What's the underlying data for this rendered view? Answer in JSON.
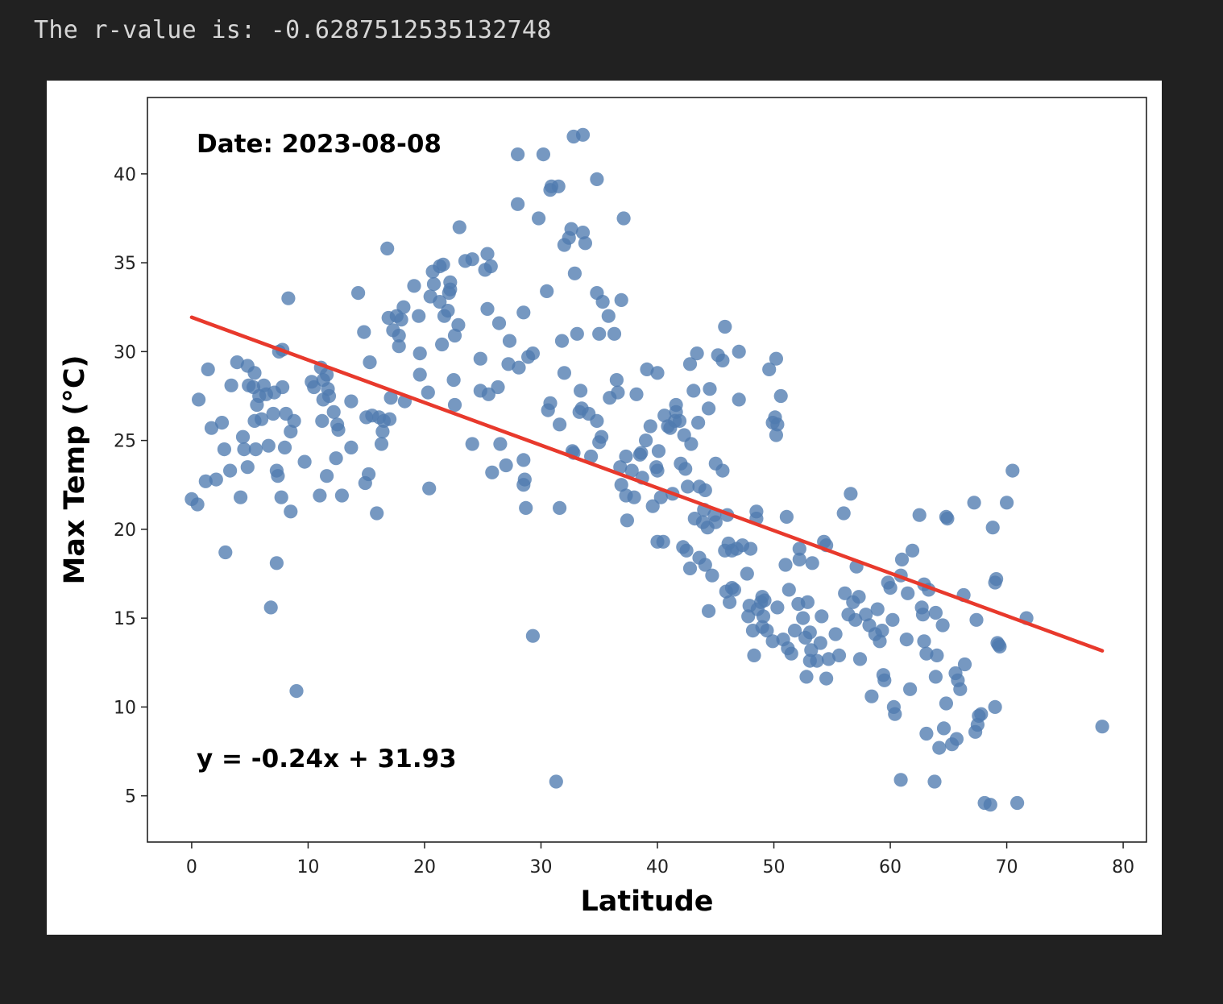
{
  "output": {
    "r_value_text": "The r-value is: -0.6287512535132748"
  },
  "chart_data": {
    "type": "scatter",
    "title": "",
    "xlabel": "Latitude",
    "ylabel": "Max Temp (°C)",
    "xlim": [
      -3.8,
      82.0
    ],
    "ylim": [
      2.4,
      44.3
    ],
    "xticks": [
      0,
      10,
      20,
      30,
      40,
      50,
      60,
      70,
      80
    ],
    "yticks": [
      5,
      10,
      15,
      20,
      25,
      30,
      35,
      40
    ],
    "grid": false,
    "annotations": {
      "date": "Date: 2023-08-08",
      "equation": "y = -0.24x + 31.93"
    },
    "regression": {
      "slope": -0.24,
      "intercept": 31.93,
      "x_range": [
        0,
        78.2
      ],
      "color": "#e8392c"
    },
    "point_color": "#4f7bb0",
    "points": [
      [
        0.0,
        21.7
      ],
      [
        0.5,
        21.4
      ],
      [
        0.6,
        27.3
      ],
      [
        1.4,
        29.0
      ],
      [
        1.2,
        22.7
      ],
      [
        1.7,
        25.7
      ],
      [
        2.1,
        22.8
      ],
      [
        2.6,
        26.0
      ],
      [
        2.9,
        18.7
      ],
      [
        2.8,
        24.5
      ],
      [
        3.4,
        28.1
      ],
      [
        3.3,
        23.3
      ],
      [
        3.9,
        29.4
      ],
      [
        4.2,
        21.8
      ],
      [
        4.4,
        25.2
      ],
      [
        4.5,
        24.5
      ],
      [
        4.8,
        29.2
      ],
      [
        4.9,
        28.1
      ],
      [
        4.8,
        23.5
      ],
      [
        5.3,
        28.0
      ],
      [
        5.4,
        28.8
      ],
      [
        5.4,
        26.1
      ],
      [
        5.6,
        27.0
      ],
      [
        5.8,
        27.5
      ],
      [
        5.5,
        24.5
      ],
      [
        6.0,
        26.2
      ],
      [
        6.2,
        28.1
      ],
      [
        6.4,
        27.6
      ],
      [
        6.6,
        24.7
      ],
      [
        6.8,
        15.6
      ],
      [
        7.0,
        26.5
      ],
      [
        7.1,
        27.7
      ],
      [
        7.3,
        23.3
      ],
      [
        7.4,
        23.0
      ],
      [
        7.3,
        18.1
      ],
      [
        7.5,
        30.0
      ],
      [
        7.7,
        21.8
      ],
      [
        7.8,
        30.1
      ],
      [
        7.8,
        28.0
      ],
      [
        8.0,
        24.6
      ],
      [
        8.1,
        26.5
      ],
      [
        8.3,
        33.0
      ],
      [
        8.5,
        25.5
      ],
      [
        8.5,
        21.0
      ],
      [
        8.8,
        26.1
      ],
      [
        9.0,
        10.9
      ],
      [
        9.7,
        23.8
      ],
      [
        10.3,
        28.3
      ],
      [
        10.5,
        28.0
      ],
      [
        11.0,
        21.9
      ],
      [
        11.1,
        29.1
      ],
      [
        11.2,
        26.1
      ],
      [
        11.3,
        27.3
      ],
      [
        11.3,
        28.4
      ],
      [
        11.6,
        23.0
      ],
      [
        11.6,
        28.7
      ],
      [
        11.7,
        27.9
      ],
      [
        11.8,
        27.5
      ],
      [
        12.2,
        26.6
      ],
      [
        12.4,
        24.0
      ],
      [
        12.5,
        25.9
      ],
      [
        12.6,
        25.6
      ],
      [
        12.9,
        21.9
      ],
      [
        13.7,
        27.2
      ],
      [
        13.7,
        24.6
      ],
      [
        14.3,
        33.3
      ],
      [
        14.8,
        31.1
      ],
      [
        14.9,
        22.6
      ],
      [
        15.0,
        26.3
      ],
      [
        15.2,
        23.1
      ],
      [
        15.3,
        29.4
      ],
      [
        15.5,
        26.4
      ],
      [
        15.9,
        20.9
      ],
      [
        16.1,
        26.3
      ],
      [
        16.3,
        24.8
      ],
      [
        16.4,
        25.5
      ],
      [
        16.5,
        26.1
      ],
      [
        16.8,
        35.8
      ],
      [
        16.9,
        31.9
      ],
      [
        17.0,
        26.2
      ],
      [
        17.1,
        27.4
      ],
      [
        17.3,
        31.2
      ],
      [
        17.6,
        32.0
      ],
      [
        17.8,
        30.9
      ],
      [
        17.8,
        30.3
      ],
      [
        18.0,
        31.8
      ],
      [
        18.2,
        32.5
      ],
      [
        18.3,
        27.2
      ],
      [
        19.1,
        33.7
      ],
      [
        19.5,
        32.0
      ],
      [
        19.6,
        29.9
      ],
      [
        19.6,
        28.7
      ],
      [
        20.3,
        27.7
      ],
      [
        20.4,
        22.3
      ],
      [
        20.5,
        33.1
      ],
      [
        20.7,
        34.5
      ],
      [
        20.8,
        33.8
      ],
      [
        21.3,
        32.8
      ],
      [
        21.3,
        34.8
      ],
      [
        21.6,
        34.9
      ],
      [
        21.5,
        30.4
      ],
      [
        21.7,
        32.0
      ],
      [
        22.0,
        32.3
      ],
      [
        22.1,
        33.3
      ],
      [
        22.2,
        33.9
      ],
      [
        22.2,
        33.5
      ],
      [
        22.5,
        28.4
      ],
      [
        22.6,
        30.9
      ],
      [
        22.6,
        27.0
      ],
      [
        22.9,
        31.5
      ],
      [
        23.0,
        37.0
      ],
      [
        23.5,
        35.1
      ],
      [
        24.1,
        35.2
      ],
      [
        24.1,
        24.8
      ],
      [
        24.8,
        29.6
      ],
      [
        24.8,
        27.8
      ],
      [
        25.2,
        34.6
      ],
      [
        25.4,
        35.5
      ],
      [
        25.4,
        32.4
      ],
      [
        25.5,
        27.6
      ],
      [
        25.7,
        34.8
      ],
      [
        25.8,
        23.2
      ],
      [
        26.4,
        31.6
      ],
      [
        26.3,
        28.0
      ],
      [
        26.5,
        24.8
      ],
      [
        27.0,
        23.6
      ],
      [
        27.2,
        29.3
      ],
      [
        27.3,
        30.6
      ],
      [
        28.0,
        41.1
      ],
      [
        28.0,
        38.3
      ],
      [
        28.1,
        29.1
      ],
      [
        28.5,
        32.2
      ],
      [
        28.5,
        23.9
      ],
      [
        28.6,
        22.8
      ],
      [
        28.5,
        22.5
      ],
      [
        28.7,
        21.2
      ],
      [
        28.9,
        29.7
      ],
      [
        29.3,
        29.9
      ],
      [
        29.3,
        14.0
      ],
      [
        29.8,
        37.5
      ],
      [
        30.2,
        41.1
      ],
      [
        30.5,
        33.4
      ],
      [
        30.6,
        26.7
      ],
      [
        30.8,
        27.1
      ],
      [
        30.8,
        39.1
      ],
      [
        30.9,
        39.3
      ],
      [
        31.3,
        5.8
      ],
      [
        31.5,
        39.3
      ],
      [
        31.6,
        25.9
      ],
      [
        31.6,
        21.2
      ],
      [
        31.8,
        30.6
      ],
      [
        32.0,
        28.8
      ],
      [
        32.0,
        36.0
      ],
      [
        32.4,
        36.4
      ],
      [
        32.6,
        36.9
      ],
      [
        32.7,
        24.4
      ],
      [
        32.8,
        24.3
      ],
      [
        32.8,
        42.1
      ],
      [
        32.9,
        34.4
      ],
      [
        33.1,
        31.0
      ],
      [
        33.3,
        26.6
      ],
      [
        33.4,
        27.8
      ],
      [
        33.5,
        26.8
      ],
      [
        33.6,
        36.7
      ],
      [
        33.6,
        42.2
      ],
      [
        33.8,
        36.1
      ],
      [
        34.1,
        26.5
      ],
      [
        34.3,
        24.1
      ],
      [
        34.8,
        26.1
      ],
      [
        34.8,
        33.3
      ],
      [
        34.8,
        39.7
      ],
      [
        35.0,
        31.0
      ],
      [
        35.0,
        24.9
      ],
      [
        35.2,
        25.2
      ],
      [
        35.3,
        32.8
      ],
      [
        35.8,
        32.0
      ],
      [
        35.9,
        27.4
      ],
      [
        36.3,
        31.0
      ],
      [
        36.5,
        28.4
      ],
      [
        36.6,
        27.7
      ],
      [
        36.8,
        23.5
      ],
      [
        36.9,
        32.9
      ],
      [
        36.9,
        22.5
      ],
      [
        37.1,
        37.5
      ],
      [
        37.3,
        24.1
      ],
      [
        37.3,
        21.9
      ],
      [
        37.4,
        20.5
      ],
      [
        37.8,
        23.3
      ],
      [
        38.0,
        21.8
      ],
      [
        38.2,
        27.6
      ],
      [
        38.5,
        24.2
      ],
      [
        38.6,
        24.3
      ],
      [
        38.7,
        22.9
      ],
      [
        39.0,
        25.0
      ],
      [
        39.1,
        29.0
      ],
      [
        39.4,
        25.8
      ],
      [
        39.6,
        21.3
      ],
      [
        39.9,
        23.5
      ],
      [
        40.0,
        28.8
      ],
      [
        40.0,
        23.3
      ],
      [
        40.0,
        19.3
      ],
      [
        40.1,
        24.4
      ],
      [
        40.3,
        21.8
      ],
      [
        40.5,
        19.3
      ],
      [
        40.6,
        26.4
      ],
      [
        40.9,
        25.8
      ],
      [
        41.1,
        25.7
      ],
      [
        41.3,
        22.0
      ],
      [
        41.5,
        26.1
      ],
      [
        41.6,
        27.0
      ],
      [
        41.6,
        26.6
      ],
      [
        41.9,
        26.1
      ],
      [
        42.0,
        23.7
      ],
      [
        42.2,
        19.0
      ],
      [
        42.3,
        25.3
      ],
      [
        42.4,
        23.4
      ],
      [
        42.5,
        18.8
      ],
      [
        42.6,
        22.4
      ],
      [
        42.8,
        17.8
      ],
      [
        42.8,
        29.3
      ],
      [
        42.9,
        24.8
      ],
      [
        43.1,
        27.8
      ],
      [
        43.2,
        20.6
      ],
      [
        43.4,
        29.9
      ],
      [
        43.5,
        26.0
      ],
      [
        43.6,
        22.4
      ],
      [
        43.6,
        18.4
      ],
      [
        43.9,
        20.4
      ],
      [
        44.0,
        21.1
      ],
      [
        44.1,
        18.0
      ],
      [
        44.1,
        22.2
      ],
      [
        44.3,
        20.1
      ],
      [
        44.4,
        26.8
      ],
      [
        44.4,
        15.4
      ],
      [
        44.5,
        27.9
      ],
      [
        44.7,
        17.4
      ],
      [
        44.9,
        20.8
      ],
      [
        45.0,
        23.7
      ],
      [
        45.0,
        20.4
      ],
      [
        45.2,
        29.8
      ],
      [
        45.6,
        23.3
      ],
      [
        45.6,
        29.5
      ],
      [
        45.8,
        31.4
      ],
      [
        45.8,
        18.8
      ],
      [
        45.9,
        16.5
      ],
      [
        46.0,
        20.8
      ],
      [
        46.1,
        19.2
      ],
      [
        46.2,
        15.9
      ],
      [
        46.4,
        16.7
      ],
      [
        46.4,
        18.8
      ],
      [
        46.6,
        16.6
      ],
      [
        46.8,
        18.9
      ],
      [
        47.0,
        30.0
      ],
      [
        47.0,
        27.3
      ],
      [
        47.3,
        19.1
      ],
      [
        47.7,
        17.5
      ],
      [
        47.8,
        15.1
      ],
      [
        47.9,
        15.7
      ],
      [
        48.0,
        18.9
      ],
      [
        48.2,
        14.3
      ],
      [
        48.3,
        12.9
      ],
      [
        48.5,
        21.0
      ],
      [
        48.5,
        20.6
      ],
      [
        48.6,
        15.5
      ],
      [
        48.9,
        15.9
      ],
      [
        49.0,
        16.2
      ],
      [
        49.0,
        14.5
      ],
      [
        49.1,
        15.1
      ],
      [
        49.2,
        16.0
      ],
      [
        49.4,
        14.3
      ],
      [
        49.6,
        29.0
      ],
      [
        49.9,
        13.7
      ],
      [
        49.9,
        26.0
      ],
      [
        50.1,
        26.3
      ],
      [
        50.2,
        29.6
      ],
      [
        50.3,
        15.6
      ],
      [
        50.3,
        25.9
      ],
      [
        50.2,
        25.3
      ],
      [
        50.6,
        27.5
      ],
      [
        50.8,
        13.8
      ],
      [
        51.1,
        20.7
      ],
      [
        51.0,
        18.0
      ],
      [
        51.2,
        13.3
      ],
      [
        51.3,
        16.6
      ],
      [
        51.5,
        13.0
      ],
      [
        51.8,
        14.3
      ],
      [
        52.1,
        15.8
      ],
      [
        52.2,
        18.9
      ],
      [
        52.2,
        18.3
      ],
      [
        52.5,
        15.0
      ],
      [
        52.7,
        13.9
      ],
      [
        52.8,
        11.7
      ],
      [
        52.9,
        15.9
      ],
      [
        53.1,
        14.2
      ],
      [
        53.1,
        12.6
      ],
      [
        53.2,
        13.2
      ],
      [
        53.3,
        18.1
      ],
      [
        53.7,
        12.6
      ],
      [
        54.0,
        13.6
      ],
      [
        54.1,
        15.1
      ],
      [
        54.3,
        19.3
      ],
      [
        54.5,
        19.1
      ],
      [
        54.5,
        11.6
      ],
      [
        54.7,
        12.7
      ],
      [
        55.3,
        14.1
      ],
      [
        55.6,
        12.9
      ],
      [
        56.0,
        20.9
      ],
      [
        56.1,
        16.4
      ],
      [
        56.4,
        15.2
      ],
      [
        56.6,
        22.0
      ],
      [
        56.8,
        15.9
      ],
      [
        57.0,
        14.9
      ],
      [
        57.1,
        17.9
      ],
      [
        57.3,
        16.2
      ],
      [
        57.4,
        12.7
      ],
      [
        57.9,
        15.2
      ],
      [
        58.2,
        14.6
      ],
      [
        58.4,
        10.6
      ],
      [
        58.7,
        14.1
      ],
      [
        58.9,
        15.5
      ],
      [
        59.1,
        13.7
      ],
      [
        59.3,
        14.3
      ],
      [
        59.4,
        11.8
      ],
      [
        59.5,
        11.5
      ],
      [
        59.8,
        17.0
      ],
      [
        60.0,
        16.7
      ],
      [
        60.2,
        14.9
      ],
      [
        60.3,
        10.0
      ],
      [
        60.4,
        9.6
      ],
      [
        60.9,
        17.4
      ],
      [
        60.9,
        5.9
      ],
      [
        61.0,
        18.3
      ],
      [
        61.4,
        13.8
      ],
      [
        61.5,
        16.4
      ],
      [
        61.7,
        11.0
      ],
      [
        61.9,
        18.8
      ],
      [
        62.5,
        20.8
      ],
      [
        62.7,
        15.6
      ],
      [
        62.8,
        15.2
      ],
      [
        62.9,
        16.9
      ],
      [
        62.9,
        13.7
      ],
      [
        63.1,
        8.5
      ],
      [
        63.1,
        13.0
      ],
      [
        63.3,
        16.6
      ],
      [
        63.8,
        5.8
      ],
      [
        63.9,
        15.3
      ],
      [
        63.9,
        11.7
      ],
      [
        64.0,
        12.9
      ],
      [
        64.2,
        7.7
      ],
      [
        64.5,
        14.6
      ],
      [
        64.6,
        8.8
      ],
      [
        64.8,
        20.7
      ],
      [
        64.8,
        10.2
      ],
      [
        64.9,
        20.6
      ],
      [
        65.3,
        7.9
      ],
      [
        65.6,
        11.9
      ],
      [
        65.7,
        8.2
      ],
      [
        65.8,
        11.5
      ],
      [
        66.0,
        11.0
      ],
      [
        66.3,
        16.3
      ],
      [
        66.4,
        12.4
      ],
      [
        67.2,
        21.5
      ],
      [
        67.3,
        8.6
      ],
      [
        67.4,
        14.9
      ],
      [
        67.5,
        9.0
      ],
      [
        67.6,
        9.5
      ],
      [
        67.8,
        9.6
      ],
      [
        68.1,
        4.6
      ],
      [
        68.6,
        4.5
      ],
      [
        68.8,
        20.1
      ],
      [
        69.0,
        17.0
      ],
      [
        69.0,
        10.0
      ],
      [
        69.1,
        17.2
      ],
      [
        69.2,
        13.6
      ],
      [
        69.3,
        13.5
      ],
      [
        69.4,
        13.4
      ],
      [
        70.0,
        21.5
      ],
      [
        70.5,
        23.3
      ],
      [
        70.9,
        4.6
      ],
      [
        71.7,
        15.0
      ],
      [
        78.2,
        8.9
      ]
    ]
  }
}
